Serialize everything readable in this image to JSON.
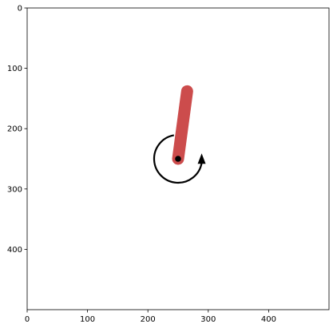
{
  "plot": {
    "xlim": [
      0,
      500
    ],
    "ylim": [
      500,
      0
    ],
    "x_ticks": [
      {
        "value": 0,
        "label": "0"
      },
      {
        "value": 100,
        "label": "100"
      },
      {
        "value": 200,
        "label": "200"
      },
      {
        "value": 300,
        "label": "300"
      },
      {
        "value": 400,
        "label": "400"
      }
    ],
    "y_ticks": [
      {
        "value": 0,
        "label": "0"
      },
      {
        "value": 100,
        "label": "100"
      },
      {
        "value": 200,
        "label": "200"
      },
      {
        "value": 300,
        "label": "300"
      },
      {
        "value": 400,
        "label": "400"
      }
    ]
  },
  "scene": {
    "environment": "pendulum",
    "pivot": {
      "x": 250,
      "y": 250
    },
    "pole_tip": {
      "x": 265,
      "y": 138
    },
    "pole_color": "#cc4c4c",
    "pivot_color": "#000000",
    "torque_indicator": "counterclockwise-arrow-icon"
  }
}
